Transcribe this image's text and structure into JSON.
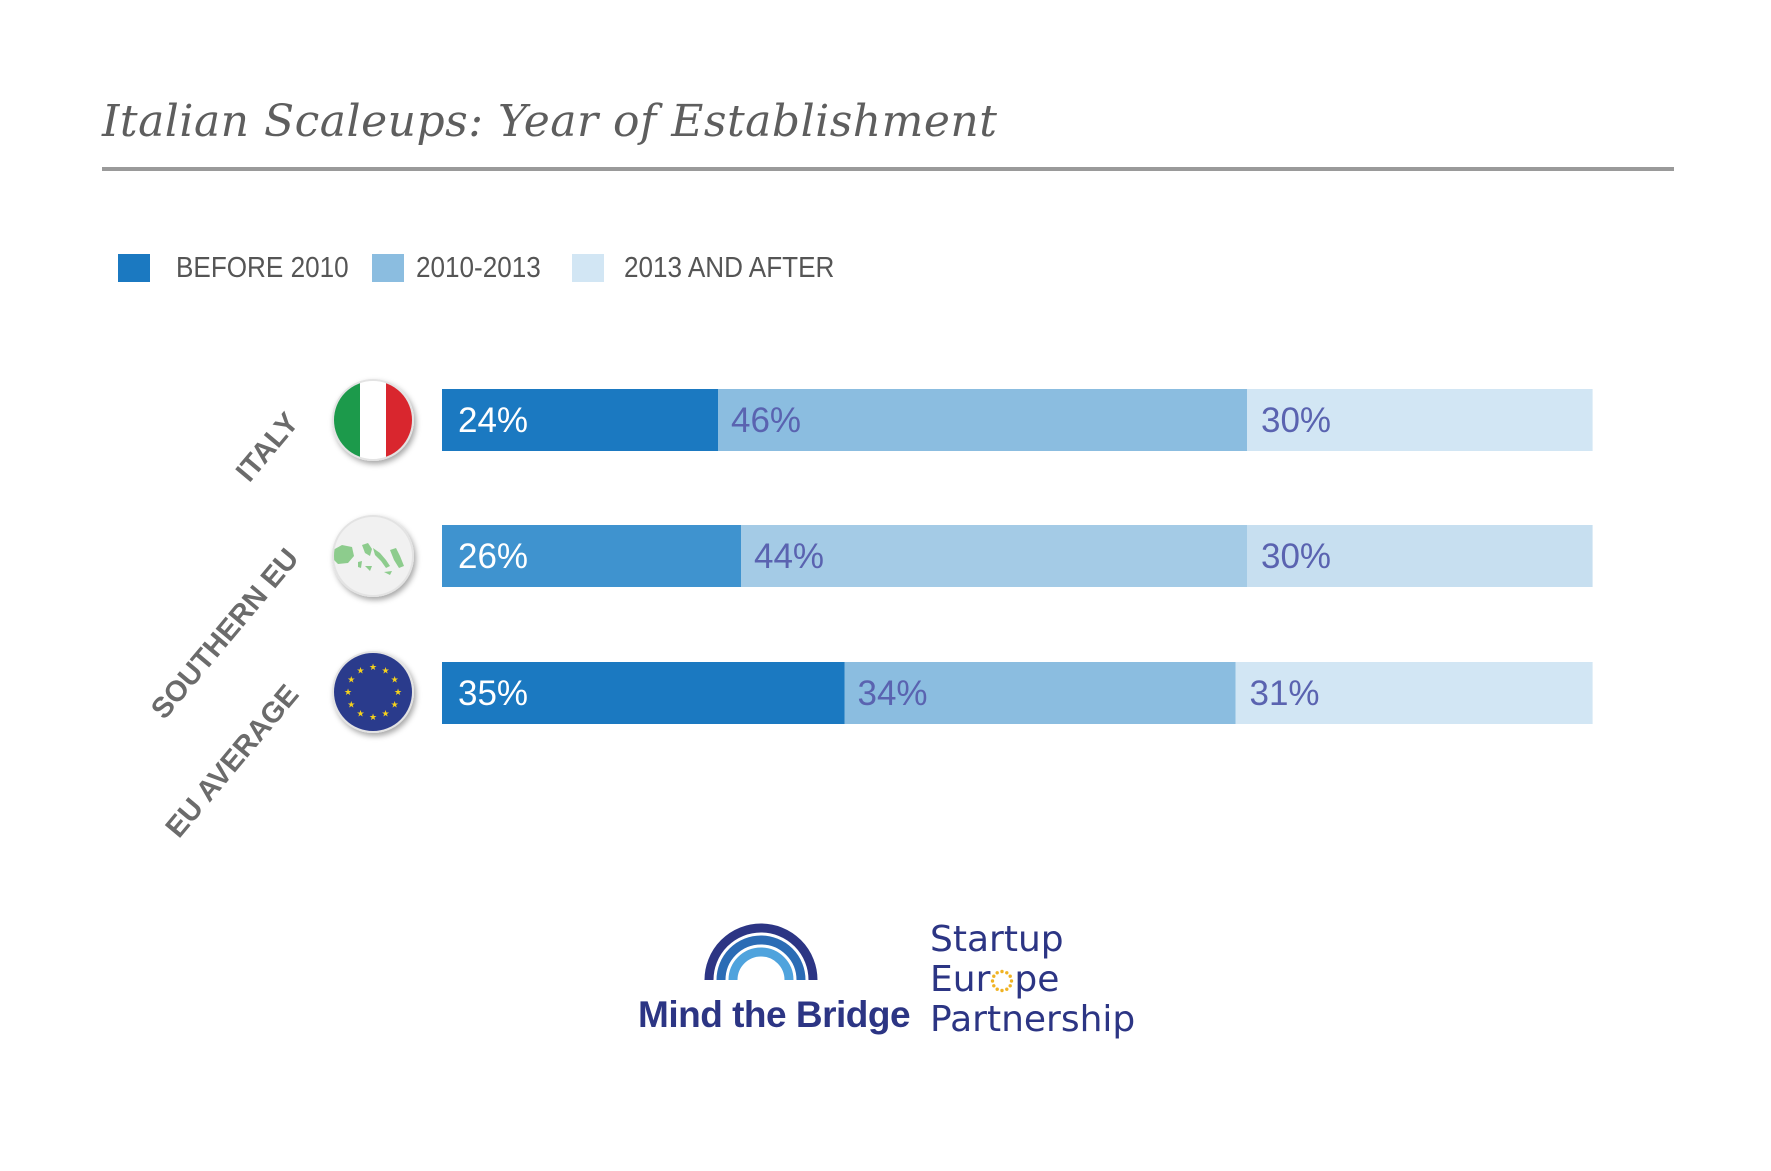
{
  "title": "Italian Scaleups: Year of Establishment",
  "legend": [
    {
      "label": "BEFORE 2010",
      "color": "#1b79c1"
    },
    {
      "label": "2010-2013",
      "color": "#8bbde0"
    },
    {
      "label": "2013 AND AFTER",
      "color": "#d2e6f4"
    }
  ],
  "chart_data": {
    "type": "bar",
    "orientation": "horizontal",
    "stacked": true,
    "categories": [
      "ITALY",
      "SOUTHERN EU",
      "EU AVERAGE"
    ],
    "series": [
      {
        "name": "BEFORE 2010",
        "values": [
          24,
          26,
          35
        ],
        "labels": [
          "24%",
          "26%",
          "35%"
        ],
        "colors": [
          "#1b79c1",
          "#3f93cf",
          "#1b79c1"
        ]
      },
      {
        "name": "2010-2013",
        "values": [
          46,
          44,
          34
        ],
        "labels": [
          "46%",
          "44%",
          "34%"
        ],
        "colors": [
          "#8bbde0",
          "#a4cbe6",
          "#8bbde0"
        ]
      },
      {
        "name": "2013 AND AFTER",
        "values": [
          30,
          30,
          31
        ],
        "labels": [
          "30%",
          "30%",
          "31%"
        ],
        "colors": [
          "#d2e6f4",
          "#c7dff0",
          "#d2e6f4"
        ]
      }
    ],
    "label_colors": [
      "#ffffff",
      "#5a63b0",
      "#5a63b0"
    ],
    "icons": [
      "italy-flag-icon",
      "southern-eu-map-icon",
      "eu-flag-icon"
    ],
    "xlim": [
      0,
      100
    ]
  },
  "logos": {
    "mind_the_bridge": "Mind the Bridge",
    "startup_line1": "Startup",
    "startup_line2_a": "Eur",
    "startup_line2_b": "pe",
    "startup_line3": "Partnership"
  }
}
